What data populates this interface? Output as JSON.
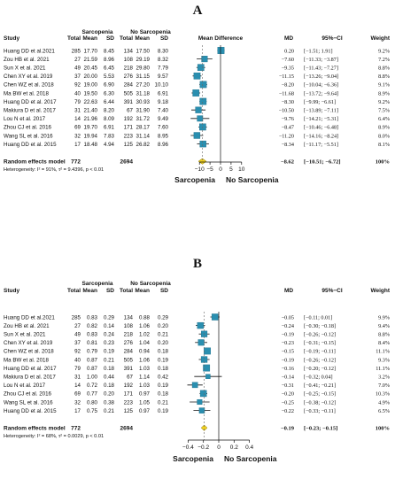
{
  "chart_data": [
    {
      "type": "forest",
      "panel_label": "A",
      "headers": {
        "study": "Study",
        "group1": "Sarcopenia",
        "group2": "No Sarcopenia",
        "total": "Total",
        "mean": "Mean",
        "sd": "SD",
        "plot": "Mean Difference",
        "md": "MD",
        "ci": "95%−CI",
        "weight": "Weight"
      },
      "studies": [
        {
          "name": "Huang DD et al.2021",
          "n1": "285",
          "m1": "17.70",
          "s1": "8.45",
          "n2": "134",
          "m2": "17.50",
          "s2": "8.30",
          "md": 0.2,
          "lo": -1.51,
          "hi": 1.91,
          "md_text": "0.20",
          "ci_text": "[−1.51; 1.91]",
          "weight": "9.2%"
        },
        {
          "name": "Zou HB et al. 2021",
          "n1": "27",
          "m1": "21.59",
          "s1": "8.96",
          "n2": "108",
          "m2": "29.19",
          "s2": "8.32",
          "md": -7.6,
          "lo": -11.33,
          "hi": -3.87,
          "md_text": "−7.60",
          "ci_text": "[−11.33; −3.87]",
          "weight": "7.2%"
        },
        {
          "name": "Sun X et al. 2021",
          "n1": "49",
          "m1": "20.45",
          "s1": "6.45",
          "n2": "218",
          "m2": "29.80",
          "s2": "7.79",
          "md": -9.35,
          "lo": -11.43,
          "hi": -7.27,
          "md_text": "−9.35",
          "ci_text": "[−11.43; −7.27]",
          "weight": "8.8%"
        },
        {
          "name": "Chen XY et al. 2019",
          "n1": "37",
          "m1": "20.00",
          "s1": "5.53",
          "n2": "276",
          "m2": "31.15",
          "s2": "9.57",
          "md": -11.15,
          "lo": -13.26,
          "hi": -9.04,
          "md_text": "−11.15",
          "ci_text": "[−13.26; −9.04]",
          "weight": "8.8%"
        },
        {
          "name": "Chen WZ et al. 2018",
          "n1": "92",
          "m1": "19.00",
          "s1": "6.90",
          "n2": "284",
          "m2": "27.20",
          "s2": "10.10",
          "md": -8.2,
          "lo": -10.04,
          "hi": -6.36,
          "md_text": "−8.20",
          "ci_text": "[−10.04; −6.36]",
          "weight": "9.1%"
        },
        {
          "name": "Ma BW et al. 2018",
          "n1": "40",
          "m1": "19.50",
          "s1": "6.30",
          "n2": "505",
          "m2": "31.18",
          "s2": "6.91",
          "md": -11.68,
          "lo": -13.72,
          "hi": -9.64,
          "md_text": "−11.68",
          "ci_text": "[−13.72; −9.64]",
          "weight": "8.9%"
        },
        {
          "name": "Huang DD et al. 2017",
          "n1": "79",
          "m1": "22.63",
          "s1": "6.44",
          "n2": "391",
          "m2": "30.93",
          "s2": "9.18",
          "md": -8.3,
          "lo": -9.99,
          "hi": -6.61,
          "md_text": "−8.30",
          "ci_text": "[−9.99; −6.61]",
          "weight": "9.2%"
        },
        {
          "name": "Makiura D et al. 2017",
          "n1": "31",
          "m1": "21.40",
          "s1": "8.20",
          "n2": "67",
          "m2": "31.90",
          "s2": "7.40",
          "md": -10.5,
          "lo": -13.89,
          "hi": -7.11,
          "md_text": "−10.50",
          "ci_text": "[−13.89; −7.11]",
          "weight": "7.5%"
        },
        {
          "name": "Lou N et al. 2017",
          "n1": "14",
          "m1": "21.96",
          "s1": "8.09",
          "n2": "192",
          "m2": "31.72",
          "s2": "9.49",
          "md": -9.76,
          "lo": -14.21,
          "hi": -5.31,
          "md_text": "−9.76",
          "ci_text": "[−14.21; −5.31]",
          "weight": "6.4%"
        },
        {
          "name": "Zhou CJ et al. 2016",
          "n1": "69",
          "m1": "19.70",
          "s1": "6.91",
          "n2": "171",
          "m2": "28.17",
          "s2": "7.60",
          "md": -8.47,
          "lo": -10.46,
          "hi": -6.48,
          "md_text": "−8.47",
          "ci_text": "[−10.46; −6.48]",
          "weight": "8.9%"
        },
        {
          "name": "Wang SL et al. 2016",
          "n1": "32",
          "m1": "19.94",
          "s1": "7.83",
          "n2": "223",
          "m2": "31.14",
          "s2": "8.95",
          "md": -11.2,
          "lo": -14.16,
          "hi": -8.24,
          "md_text": "−11.20",
          "ci_text": "[−14.16; −8.24]",
          "weight": "8.0%"
        },
        {
          "name": "Huang DD et al. 2015",
          "n1": "17",
          "m1": "18.48",
          "s1": "4.94",
          "n2": "125",
          "m2": "26.82",
          "s2": "8.96",
          "md": -8.34,
          "lo": -11.17,
          "hi": -5.51,
          "md_text": "−8.34",
          "ci_text": "[−11.17; −5.51]",
          "weight": "8.1%"
        }
      ],
      "pooled": {
        "label": "Random effects model",
        "n1": "772",
        "n2": "2694",
        "md": -8.62,
        "lo": -10.51,
        "hi": -6.72,
        "md_text": "−8.62",
        "ci_text": "[−10.51; −6.72]",
        "weight": "100%"
      },
      "heterogeneity": "Heterogeneity: I² = 91%, τ² = 9.4396, p < 0.01",
      "x_ticks": [
        -10,
        -5,
        0,
        5,
        10
      ],
      "xlim": [
        -14.3,
        14.3
      ],
      "favours_left": "Sarcopenia",
      "favours_right": "No Sarcopenia"
    },
    {
      "type": "forest",
      "panel_label": "B",
      "headers": {
        "study": "Study",
        "group1": "Sarcopenia",
        "group2": "No Sarcopenia",
        "total": "Total",
        "mean": "Mean",
        "sd": "SD",
        "plot": "",
        "md": "MD",
        "ci": "95%−CI",
        "weight": "Weight"
      },
      "studies": [
        {
          "name": "Huang DD et al.2021",
          "n1": "285",
          "m1": "0.83",
          "s1": "0.29",
          "n2": "134",
          "m2": "0.88",
          "s2": "0.29",
          "md": -0.05,
          "lo": -0.11,
          "hi": 0.01,
          "md_text": "−0.05",
          "ci_text": "[−0.11; 0.01]",
          "weight": "9.9%"
        },
        {
          "name": "Zou HB et al. 2021",
          "n1": "27",
          "m1": "0.82",
          "s1": "0.14",
          "n2": "108",
          "m2": "1.06",
          "s2": "0.20",
          "md": -0.24,
          "lo": -0.3,
          "hi": -0.18,
          "md_text": "−0.24",
          "ci_text": "[−0.30; −0.18]",
          "weight": "9.4%"
        },
        {
          "name": "Sun X et al. 2021",
          "n1": "49",
          "m1": "0.83",
          "s1": "0.24",
          "n2": "218",
          "m2": "1.02",
          "s2": "0.21",
          "md": -0.19,
          "lo": -0.26,
          "hi": -0.12,
          "md_text": "−0.19",
          "ci_text": "[−0.26; −0.12]",
          "weight": "8.8%"
        },
        {
          "name": "Chen XY et al. 2019",
          "n1": "37",
          "m1": "0.81",
          "s1": "0.23",
          "n2": "276",
          "m2": "1.04",
          "s2": "0.20",
          "md": -0.23,
          "lo": -0.31,
          "hi": -0.15,
          "md_text": "−0.23",
          "ci_text": "[−0.31; −0.15]",
          "weight": "8.4%"
        },
        {
          "name": "Chen WZ et al. 2018",
          "n1": "92",
          "m1": "0.79",
          "s1": "0.19",
          "n2": "284",
          "m2": "0.94",
          "s2": "0.18",
          "md": -0.15,
          "lo": -0.19,
          "hi": -0.11,
          "md_text": "−0.15",
          "ci_text": "[−0.19; −0.11]",
          "weight": "11.1%"
        },
        {
          "name": "Ma BW et al. 2018",
          "n1": "40",
          "m1": "0.87",
          "s1": "0.21",
          "n2": "505",
          "m2": "1.06",
          "s2": "0.19",
          "md": -0.19,
          "lo": -0.26,
          "hi": -0.12,
          "md_text": "−0.19",
          "ci_text": "[−0.26; −0.12]",
          "weight": "9.3%"
        },
        {
          "name": "Huang DD et al. 2017",
          "n1": "79",
          "m1": "0.87",
          "s1": "0.18",
          "n2": "391",
          "m2": "1.03",
          "s2": "0.18",
          "md": -0.16,
          "lo": -0.2,
          "hi": -0.12,
          "md_text": "−0.16",
          "ci_text": "[−0.20; −0.12]",
          "weight": "11.1%"
        },
        {
          "name": "Makiura D et al. 2017",
          "n1": "31",
          "m1": "1.00",
          "s1": "0.44",
          "n2": "67",
          "m2": "1.14",
          "s2": "0.42",
          "md": -0.14,
          "lo": -0.32,
          "hi": 0.04,
          "md_text": "−0.14",
          "ci_text": "[−0.32; 0.04]",
          "weight": "3.2%"
        },
        {
          "name": "Lou N et al. 2017",
          "n1": "14",
          "m1": "0.72",
          "s1": "0.18",
          "n2": "192",
          "m2": "1.03",
          "s2": "0.19",
          "md": -0.31,
          "lo": -0.41,
          "hi": -0.21,
          "md_text": "−0.31",
          "ci_text": "[−0.41; −0.21]",
          "weight": "7.0%"
        },
        {
          "name": "Zhou CJ et al. 2016",
          "n1": "69",
          "m1": "0.77",
          "s1": "0.20",
          "n2": "171",
          "m2": "0.97",
          "s2": "0.18",
          "md": -0.2,
          "lo": -0.25,
          "hi": -0.15,
          "md_text": "−0.20",
          "ci_text": "[−0.25; −0.15]",
          "weight": "10.3%"
        },
        {
          "name": "Wang SL et al. 2016",
          "n1": "32",
          "m1": "0.80",
          "s1": "0.38",
          "n2": "223",
          "m2": "1.05",
          "s2": "0.21",
          "md": -0.25,
          "lo": -0.38,
          "hi": -0.12,
          "md_text": "−0.25",
          "ci_text": "[−0.38; −0.12]",
          "weight": "4.9%"
        },
        {
          "name": "Huang DD et al. 2015",
          "n1": "17",
          "m1": "0.75",
          "s1": "0.21",
          "n2": "125",
          "m2": "0.97",
          "s2": "0.19",
          "md": -0.22,
          "lo": -0.33,
          "hi": -0.11,
          "md_text": "−0.22",
          "ci_text": "[−0.33; −0.11]",
          "weight": "6.5%"
        }
      ],
      "pooled": {
        "label": "Random effects model",
        "n1": "772",
        "n2": "2694",
        "md": -0.19,
        "lo": -0.23,
        "hi": -0.15,
        "md_text": "−0.19",
        "ci_text": "[−0.23; −0.15]",
        "weight": "100%"
      },
      "heterogeneity": "Heterogeneity: I² = 68%, τ² = 0.0029, p < 0.01",
      "x_ticks": [
        -0.4,
        -0.2,
        0,
        0.2,
        0.4
      ],
      "xlim": [
        -0.52,
        0.52
      ],
      "favours_left": "Sarcopenia",
      "favours_right": "No Sarcopenia"
    }
  ],
  "colors": {
    "box": "#2a8fb0",
    "diamond": "#f2d21f",
    "diamond_stroke": "#8a7400",
    "line": "#111111"
  }
}
